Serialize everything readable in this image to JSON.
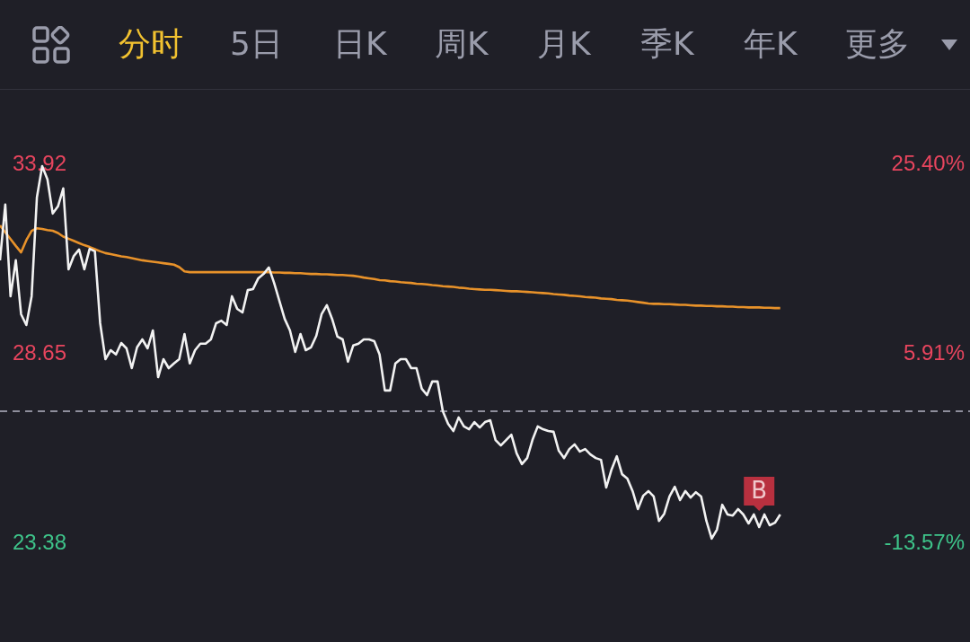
{
  "chart_data": {
    "type": "line",
    "ylim": [
      23.38,
      33.92
    ],
    "yticks": [
      33.92,
      28.65,
      23.38
    ],
    "y2lim": [
      -13.57,
      25.4
    ],
    "y2ticks": [
      {
        "value": 25.4,
        "label": "25.40%"
      },
      {
        "value": 5.91,
        "label": "5.91%"
      },
      {
        "value": -13.57,
        "label": "-13.57%"
      }
    ],
    "tick_labels": "y",
    "grid": false,
    "legend": false,
    "marker": "none",
    "line_style": "solid",
    "categories": [
      null,
      null,
      null,
      null,
      null,
      null,
      null,
      null,
      null,
      null,
      null,
      null,
      null,
      null,
      null,
      null,
      null,
      null,
      null,
      null,
      null,
      null,
      null,
      null,
      null,
      null,
      null,
      null,
      null,
      null,
      null,
      null,
      null,
      null,
      null,
      null,
      null,
      null,
      null,
      null,
      null,
      null,
      null,
      null,
      null,
      null,
      null,
      null,
      null,
      null,
      null,
      null,
      null,
      null,
      null,
      null,
      null,
      null,
      null,
      null,
      null,
      null,
      null,
      null,
      null,
      null,
      null,
      null,
      null,
      null,
      null,
      null,
      null,
      null,
      null,
      null,
      null,
      null,
      null,
      null,
      null,
      null,
      null,
      null,
      null,
      null,
      null,
      null,
      null,
      null,
      null,
      null,
      null,
      null,
      null,
      null,
      null,
      null,
      null,
      null,
      null,
      null,
      null,
      null,
      null,
      null,
      null,
      null,
      null,
      null,
      null,
      null,
      null,
      null,
      null,
      null,
      null,
      null,
      null,
      null,
      null,
      null,
      null,
      null,
      null,
      null,
      null,
      null,
      null,
      null,
      null,
      null,
      null,
      null,
      null,
      null,
      null,
      null,
      null,
      null,
      null,
      null,
      null,
      null,
      null,
      null,
      null,
      null,
      null,
      null,
      null,
      null,
      null,
      null,
      null,
      null,
      null,
      null,
      null,
      null,
      null,
      null,
      null,
      null,
      null,
      null,
      null,
      null,
      null,
      null,
      null,
      null,
      null,
      null,
      null,
      null,
      null,
      null,
      null,
      null,
      null,
      null,
      null,
      null,
      null
    ],
    "ref_lines": [
      {
        "axis": "y",
        "value": 27.05,
        "color": "#8e8e9c",
        "line_style": "dashed"
      }
    ],
    "annotations": [
      "分时",
      "5日",
      "日K",
      "周K",
      "月K",
      "季K",
      "年K",
      "更多",
      {
        "text": "B",
        "y": 23.83
      }
    ],
    "series": [
      {
        "color": "#f2f2f2",
        "values": [
          31.25,
          32.8,
          30.25,
          31.25,
          29.75,
          29.45,
          30.25,
          33.0,
          33.87,
          33.5,
          32.55,
          32.75,
          33.25,
          31.0,
          31.37,
          31.55,
          31.0,
          31.57,
          31.5,
          29.5,
          28.5,
          28.75,
          28.63,
          28.95,
          28.8,
          28.25,
          28.83,
          29.05,
          28.8,
          29.3,
          28.0,
          28.5,
          28.25,
          28.38,
          28.5,
          29.2,
          28.38,
          28.75,
          28.93,
          28.93,
          29.05,
          29.5,
          29.57,
          29.45,
          30.25,
          29.9,
          29.8,
          30.42,
          30.45,
          30.75,
          30.87,
          31.05,
          30.62,
          30.12,
          29.62,
          29.3,
          28.7,
          29.2,
          28.75,
          28.83,
          29.15,
          29.75,
          30.0,
          29.62,
          29.13,
          29.05,
          28.43,
          28.88,
          28.93,
          29.05,
          29.05,
          29.0,
          28.63,
          27.63,
          27.63,
          28.38,
          28.5,
          28.5,
          28.25,
          28.25,
          27.68,
          27.5,
          27.88,
          27.88,
          27.05,
          26.7,
          26.5,
          26.88,
          26.63,
          26.55,
          26.75,
          26.6,
          26.75,
          26.8,
          26.25,
          26.1,
          26.25,
          26.4,
          25.88,
          25.58,
          25.75,
          26.25,
          26.63,
          26.55,
          26.5,
          26.48,
          25.95,
          25.75,
          26.0,
          26.13,
          25.93,
          26.0,
          25.85,
          25.75,
          25.7,
          24.93,
          25.43,
          25.8,
          25.3,
          25.18,
          24.83,
          24.33,
          24.7,
          24.83,
          24.68,
          24.0,
          24.2,
          24.68,
          24.95,
          24.58,
          24.83,
          24.65,
          24.8,
          24.68,
          24.0,
          23.51,
          23.76,
          24.45,
          24.18,
          24.15,
          24.33,
          24.18,
          23.93,
          24.18,
          23.83,
          24.18,
          23.88,
          23.95,
          24.18,
          null,
          null,
          null,
          null,
          null,
          null,
          null,
          null,
          null,
          null,
          null,
          null,
          null,
          null,
          null,
          null,
          null,
          null,
          null,
          null,
          null,
          null,
          null,
          null,
          null,
          null,
          null,
          null,
          null,
          null,
          null,
          null,
          null,
          null,
          null,
          null
        ]
      },
      {
        "color": "#e8922a",
        "values": [
          32.22,
          32.03,
          31.84,
          31.65,
          31.47,
          31.81,
          32.07,
          32.14,
          32.12,
          32.09,
          32.07,
          32.01,
          31.91,
          31.85,
          31.79,
          31.73,
          31.67,
          31.62,
          31.56,
          31.5,
          31.45,
          31.42,
          31.39,
          31.36,
          31.34,
          31.31,
          31.28,
          31.25,
          31.23,
          31.21,
          31.19,
          31.17,
          31.15,
          31.13,
          31.06,
          30.94,
          30.92,
          30.92,
          30.92,
          30.92,
          30.92,
          30.92,
          30.92,
          30.92,
          30.92,
          30.92,
          30.92,
          30.92,
          30.92,
          30.92,
          30.92,
          30.92,
          30.91,
          30.91,
          30.9,
          30.9,
          30.89,
          30.89,
          30.88,
          30.87,
          30.87,
          30.86,
          30.86,
          30.85,
          30.84,
          30.84,
          30.83,
          30.82,
          30.8,
          30.77,
          30.75,
          30.73,
          30.7,
          30.69,
          30.67,
          30.66,
          30.64,
          30.63,
          30.62,
          30.6,
          30.59,
          30.58,
          30.56,
          30.55,
          30.53,
          30.52,
          30.51,
          30.49,
          30.48,
          30.46,
          30.45,
          30.44,
          30.43,
          30.43,
          30.42,
          30.41,
          30.4,
          30.39,
          30.39,
          30.38,
          30.37,
          30.36,
          30.35,
          30.34,
          30.33,
          30.31,
          30.3,
          30.29,
          30.27,
          30.26,
          30.25,
          30.23,
          30.22,
          30.21,
          30.19,
          30.18,
          30.17,
          30.15,
          30.14,
          30.13,
          30.11,
          30.09,
          30.07,
          30.05,
          30.04,
          30.04,
          30.03,
          30.03,
          30.02,
          30.01,
          30.01,
          30.0,
          29.99,
          29.99,
          29.98,
          29.98,
          29.97,
          29.97,
          29.96,
          29.96,
          29.95,
          29.95,
          29.94,
          29.94,
          29.94,
          29.93,
          29.93,
          29.92,
          29.92,
          null,
          null,
          null,
          null,
          null,
          null,
          null,
          null,
          null,
          null,
          null,
          null,
          null,
          null,
          null,
          null,
          null,
          null,
          null,
          null,
          null,
          null,
          null,
          null,
          null,
          null,
          null,
          null,
          null,
          null,
          null,
          null,
          null,
          null,
          null,
          null
        ]
      }
    ]
  }
}
